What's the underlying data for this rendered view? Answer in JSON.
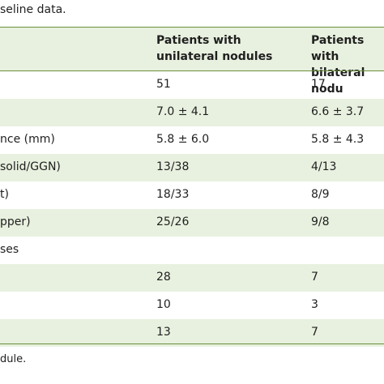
{
  "caption": "seline data.",
  "header": {
    "col0": "",
    "col1": "Patients with\nunilateral nodules",
    "col2": "Patients with\nbilateral nodu"
  },
  "rows": [
    {
      "c0": "",
      "c1": "51",
      "c2": "17",
      "shaded": false
    },
    {
      "c0": "",
      "c1": "7.0 ± 4.1",
      "c2": "6.6 ± 3.7",
      "shaded": true
    },
    {
      "c0": "nce (mm)",
      "c1": "5.8 ± 6.0",
      "c2": "5.8 ± 4.3",
      "shaded": false
    },
    {
      "c0": "solid/GGN)",
      "c1": "13/38",
      "c2": "4/13",
      "shaded": true
    },
    {
      "c0": "t)",
      "c1": "18/33",
      "c2": "8/9",
      "shaded": false
    },
    {
      "c0": "pper)",
      "c1": "25/26",
      "c2": "9/8",
      "shaded": true
    },
    {
      "c0": "ses",
      "c1": "",
      "c2": "",
      "shaded": false
    },
    {
      "c0": "",
      "c1": "28",
      "c2": "7",
      "shaded": true
    },
    {
      "c0": "",
      "c1": "10",
      "c2": "3",
      "shaded": false
    },
    {
      "c0": "",
      "c1": "13",
      "c2": "7",
      "shaded": true
    }
  ],
  "footnote": "dule."
}
